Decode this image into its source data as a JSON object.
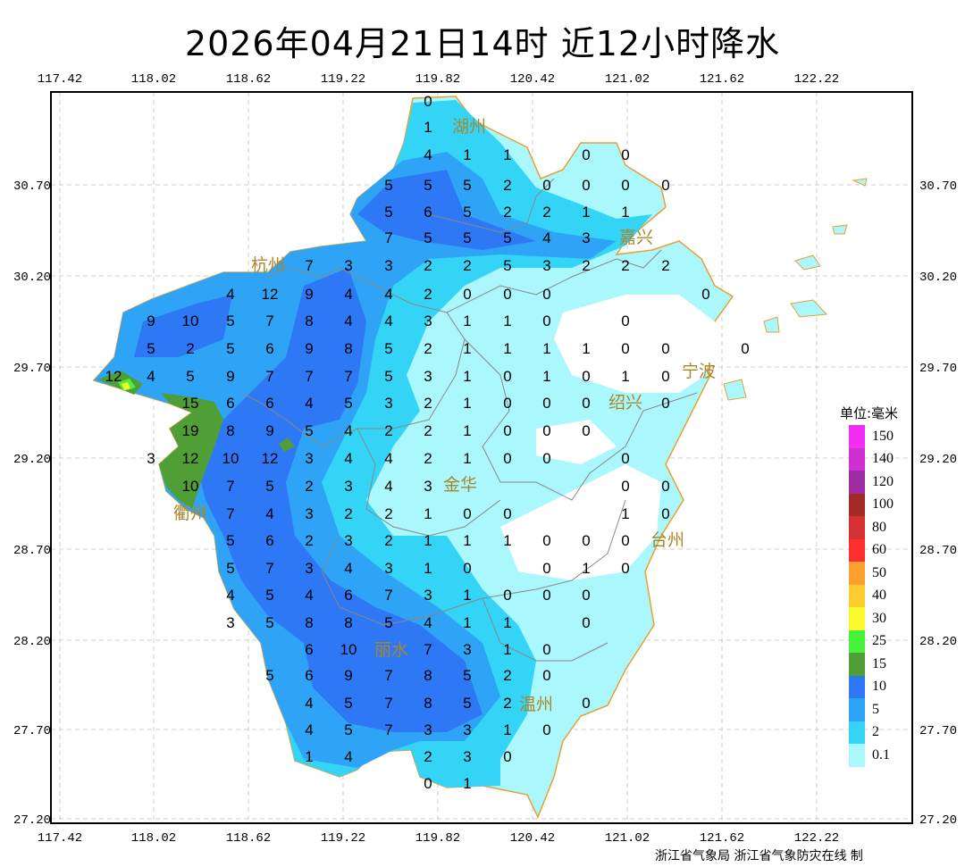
{
  "title": "2026年04月21日14时  近12小时降水",
  "axes": {
    "lon_ticks": [
      "117.42",
      "118.02",
      "118.62",
      "119.22",
      "119.82",
      "120.42",
      "121.02",
      "121.62",
      "122.22"
    ],
    "lat_ticks": [
      "30.70",
      "30.20",
      "29.70",
      "29.20",
      "28.70",
      "28.20",
      "27.70",
      "27.20"
    ]
  },
  "legend": {
    "title": "单位:毫米",
    "items": [
      {
        "label": "150",
        "color": "#f22ef2"
      },
      {
        "label": "140",
        "color": "#d030d0"
      },
      {
        "label": "120",
        "color": "#a02ca4"
      },
      {
        "label": "100",
        "color": "#a42a2a"
      },
      {
        "label": "80",
        "color": "#d43232"
      },
      {
        "label": "60",
        "color": "#fe2e2e"
      },
      {
        "label": "50",
        "color": "#fea030"
      },
      {
        "label": "40",
        "color": "#fdcc2e"
      },
      {
        "label": "30",
        "color": "#fafa2c"
      },
      {
        "label": "25",
        "color": "#46f23c"
      },
      {
        "label": "15",
        "color": "#4f9e36"
      },
      {
        "label": "10",
        "color": "#2e78f6"
      },
      {
        "label": "5",
        "color": "#2fa4f6"
      },
      {
        "label": "2",
        "color": "#34d4f7"
      },
      {
        "label": "0.1",
        "color": "#aaf8fd"
      }
    ]
  },
  "cities": [
    "湖州",
    "嘉兴",
    "杭州",
    "绍兴",
    "宁波",
    "衢州",
    "金华",
    "台州",
    "丽水",
    "温州"
  ],
  "stations": [
    [
      [
        8,
        "0"
      ]
    ],
    [
      [
        8,
        "1"
      ]
    ],
    [
      [
        8,
        "4"
      ],
      [
        9,
        "1"
      ],
      [
        10,
        "1"
      ],
      [
        12,
        "0"
      ],
      [
        13,
        "0"
      ]
    ],
    [
      [
        7,
        "5"
      ],
      [
        8,
        "5"
      ],
      [
        9,
        "5"
      ],
      [
        10,
        "2"
      ],
      [
        11,
        "0"
      ],
      [
        12,
        "0"
      ],
      [
        13,
        "0"
      ],
      [
        14,
        "0"
      ]
    ],
    [
      [
        7,
        "5"
      ],
      [
        8,
        "6"
      ],
      [
        9,
        "5"
      ],
      [
        10,
        "2"
      ],
      [
        11,
        "2"
      ],
      [
        12,
        "1"
      ],
      [
        13,
        "1"
      ]
    ],
    [
      [
        7,
        "7"
      ],
      [
        8,
        "5"
      ],
      [
        9,
        "5"
      ],
      [
        10,
        "5"
      ],
      [
        11,
        "4"
      ],
      [
        12,
        "3"
      ]
    ],
    [
      [
        5,
        "7"
      ],
      [
        6,
        "3"
      ],
      [
        7,
        "3"
      ],
      [
        8,
        "2"
      ],
      [
        9,
        "2"
      ],
      [
        10,
        "5"
      ],
      [
        11,
        "3"
      ],
      [
        12,
        "2"
      ],
      [
        13,
        "2"
      ],
      [
        14,
        "2"
      ]
    ],
    [
      [
        3,
        "4"
      ],
      [
        4,
        "12"
      ],
      [
        5,
        "9"
      ],
      [
        6,
        "4"
      ],
      [
        7,
        "4"
      ],
      [
        8,
        "2"
      ],
      [
        9,
        "0"
      ],
      [
        10,
        "0"
      ],
      [
        11,
        "0"
      ],
      [
        15,
        "0"
      ]
    ],
    [
      [
        1,
        "9"
      ],
      [
        2,
        "10"
      ],
      [
        3,
        "5"
      ],
      [
        4,
        "7"
      ],
      [
        5,
        "8"
      ],
      [
        6,
        "4"
      ],
      [
        7,
        "4"
      ],
      [
        8,
        "3"
      ],
      [
        9,
        "1"
      ],
      [
        10,
        "1"
      ],
      [
        11,
        "0"
      ],
      [
        13,
        "0"
      ]
    ],
    [
      [
        1,
        "5"
      ],
      [
        2,
        "2"
      ],
      [
        3,
        "5"
      ],
      [
        4,
        "6"
      ],
      [
        5,
        "9"
      ],
      [
        6,
        "8"
      ],
      [
        7,
        "5"
      ],
      [
        8,
        "2"
      ],
      [
        9,
        "1"
      ],
      [
        10,
        "1"
      ],
      [
        11,
        "1"
      ],
      [
        12,
        "1"
      ],
      [
        13,
        "0"
      ],
      [
        14,
        "0"
      ],
      [
        16,
        "0"
      ]
    ],
    [
      [
        0,
        "12"
      ],
      [
        1,
        "4"
      ],
      [
        2,
        "5"
      ],
      [
        3,
        "9"
      ],
      [
        4,
        "7"
      ],
      [
        5,
        "7"
      ],
      [
        6,
        "7"
      ],
      [
        7,
        "5"
      ],
      [
        8,
        "3"
      ],
      [
        9,
        "1"
      ],
      [
        10,
        "0"
      ],
      [
        11,
        "1"
      ],
      [
        12,
        "0"
      ],
      [
        13,
        "1"
      ],
      [
        14,
        "0"
      ]
    ],
    [
      [
        2,
        "15"
      ],
      [
        3,
        "6"
      ],
      [
        4,
        "6"
      ],
      [
        5,
        "4"
      ],
      [
        6,
        "5"
      ],
      [
        7,
        "3"
      ],
      [
        8,
        "2"
      ],
      [
        9,
        "1"
      ],
      [
        10,
        "0"
      ],
      [
        11,
        "0"
      ],
      [
        12,
        "0"
      ],
      [
        14,
        "0"
      ]
    ],
    [
      [
        2,
        "19"
      ],
      [
        3,
        "8"
      ],
      [
        4,
        "9"
      ],
      [
        5,
        "5"
      ],
      [
        6,
        "4"
      ],
      [
        7,
        "2"
      ],
      [
        8,
        "2"
      ],
      [
        9,
        "1"
      ],
      [
        10,
        "0"
      ],
      [
        11,
        "0"
      ],
      [
        12,
        "0"
      ]
    ],
    [
      [
        1,
        "3"
      ],
      [
        2,
        "12"
      ],
      [
        3,
        "10"
      ],
      [
        4,
        "12"
      ],
      [
        5,
        "3"
      ],
      [
        6,
        "4"
      ],
      [
        7,
        "4"
      ],
      [
        8,
        "2"
      ],
      [
        9,
        "1"
      ],
      [
        10,
        "0"
      ],
      [
        11,
        "0"
      ],
      [
        13,
        "0"
      ]
    ],
    [
      [
        2,
        "10"
      ],
      [
        3,
        "7"
      ],
      [
        4,
        "5"
      ],
      [
        5,
        "2"
      ],
      [
        6,
        "3"
      ],
      [
        7,
        "4"
      ],
      [
        8,
        "3"
      ],
      [
        13,
        "0"
      ],
      [
        14,
        "0"
      ]
    ],
    [
      [
        3,
        "7"
      ],
      [
        4,
        "4"
      ],
      [
        5,
        "3"
      ],
      [
        6,
        "2"
      ],
      [
        7,
        "2"
      ],
      [
        8,
        "1"
      ],
      [
        9,
        "0"
      ],
      [
        10,
        "0"
      ],
      [
        13,
        "1"
      ],
      [
        14,
        "0"
      ]
    ],
    [
      [
        3,
        "5"
      ],
      [
        4,
        "6"
      ],
      [
        5,
        "2"
      ],
      [
        6,
        "3"
      ],
      [
        7,
        "2"
      ],
      [
        8,
        "1"
      ],
      [
        9,
        "1"
      ],
      [
        10,
        "1"
      ],
      [
        11,
        "0"
      ],
      [
        12,
        "0"
      ],
      [
        13,
        "0"
      ]
    ],
    [
      [
        3,
        "5"
      ],
      [
        4,
        "7"
      ],
      [
        5,
        "3"
      ],
      [
        6,
        "4"
      ],
      [
        7,
        "3"
      ],
      [
        8,
        "1"
      ],
      [
        9,
        "0"
      ],
      [
        11,
        "0"
      ],
      [
        12,
        "1"
      ],
      [
        13,
        "0"
      ]
    ],
    [
      [
        3,
        "4"
      ],
      [
        4,
        "5"
      ],
      [
        5,
        "4"
      ],
      [
        6,
        "6"
      ],
      [
        7,
        "7"
      ],
      [
        8,
        "3"
      ],
      [
        9,
        "1"
      ],
      [
        10,
        "0"
      ],
      [
        11,
        "0"
      ],
      [
        12,
        "0"
      ]
    ],
    [
      [
        3,
        "3"
      ],
      [
        4,
        "5"
      ],
      [
        5,
        "8"
      ],
      [
        6,
        "8"
      ],
      [
        7,
        "5"
      ],
      [
        8,
        "4"
      ],
      [
        9,
        "1"
      ],
      [
        10,
        "1"
      ],
      [
        12,
        "0"
      ]
    ],
    [
      [
        5,
        "6"
      ],
      [
        6,
        "10"
      ],
      [
        8,
        "7"
      ],
      [
        9,
        "3"
      ],
      [
        10,
        "1"
      ],
      [
        11,
        "0"
      ]
    ],
    [
      [
        4,
        "5"
      ],
      [
        5,
        "6"
      ],
      [
        6,
        "9"
      ],
      [
        7,
        "7"
      ],
      [
        8,
        "8"
      ],
      [
        9,
        "5"
      ],
      [
        10,
        "2"
      ],
      [
        11,
        "0"
      ]
    ],
    [
      [
        5,
        "4"
      ],
      [
        6,
        "5"
      ],
      [
        7,
        "7"
      ],
      [
        8,
        "8"
      ],
      [
        9,
        "5"
      ],
      [
        10,
        "2"
      ],
      [
        12,
        "0"
      ]
    ],
    [
      [
        5,
        "4"
      ],
      [
        6,
        "5"
      ],
      [
        7,
        "7"
      ],
      [
        8,
        "3"
      ],
      [
        9,
        "3"
      ],
      [
        10,
        "1"
      ],
      [
        11,
        "0"
      ]
    ],
    [
      [
        5,
        "1"
      ],
      [
        6,
        "4"
      ],
      [
        8,
        "2"
      ],
      [
        9,
        "3"
      ],
      [
        10,
        "0"
      ]
    ],
    [
      [
        8,
        "0"
      ],
      [
        9,
        "1"
      ]
    ]
  ],
  "footer": "浙江省气象局 浙江省气象防灾在线 制"
}
